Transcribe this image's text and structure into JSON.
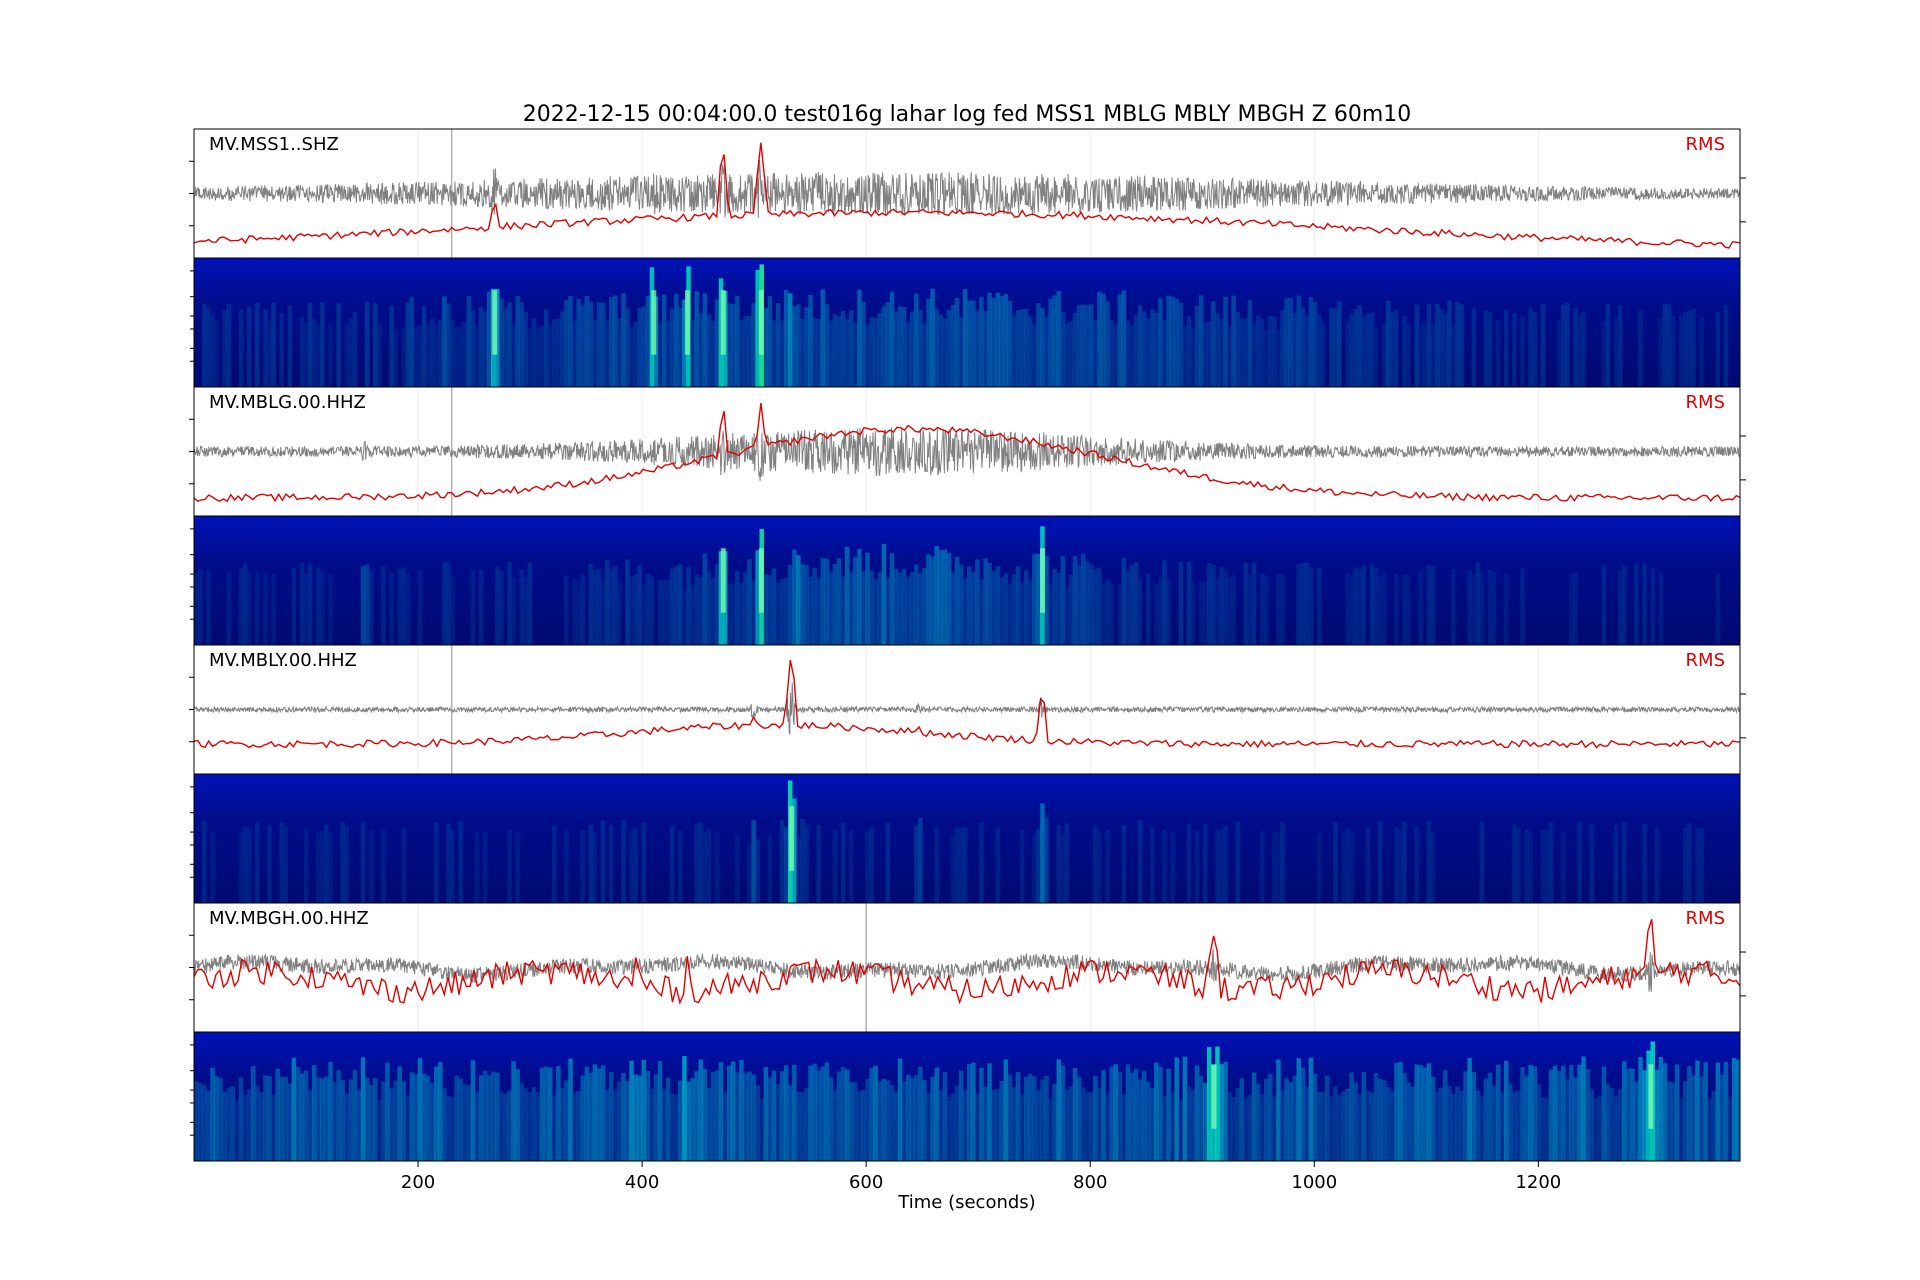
{
  "title": "2022-12-15 00:04:00.0       test016g lahar log fed  MSS1 MBLG MBLY MBGH  Z  60m10",
  "chart_data": {
    "type": "line",
    "title": "2022-12-15 00:04:00.0       test016g lahar log fed  MSS1 MBLG MBLY MBGH  Z  60m10",
    "xlabel": "Time (seconds)",
    "xlim": [
      0,
      1380
    ],
    "xticks": [
      200,
      400,
      600,
      800,
      1000,
      1200
    ],
    "grid": true,
    "legend_label": "RMS",
    "colors": {
      "waveform": "#808080",
      "rms": "#e00000",
      "spectrogram_low": "#00087a",
      "spectrogram_high": "#ffee00"
    },
    "stations": [
      {
        "label": "MV.MSS1..SHZ",
        "marker": 230,
        "env_base": 0.06,
        "env_peak": 0.34,
        "env_center": 620,
        "env_width": 330,
        "spikes": [
          [
            222,
            0.15
          ],
          [
            268,
            0.45
          ],
          [
            410,
            0.4
          ],
          [
            440,
            0.45
          ],
          [
            472,
            0.55
          ],
          [
            506,
            0.62
          ],
          [
            533,
            0.3
          ],
          [
            757,
            0.2
          ]
        ],
        "rms_base": 0.03,
        "rms_peak": 0.32,
        "rms_center": 640,
        "rms_width": 380,
        "rms_spikes": [
          [
            222,
            0.15
          ],
          [
            268,
            0.42
          ],
          [
            410,
            0.28
          ],
          [
            440,
            0.3
          ],
          [
            472,
            0.85
          ],
          [
            506,
            0.92
          ],
          [
            757,
            0.3
          ],
          [
            872,
            0.25
          ]
        ]
      },
      {
        "label": "MV.MBLG.00.HHZ",
        "marker": 230,
        "env_base": 0.08,
        "env_peak": 0.38,
        "env_center": 620,
        "env_width": 160,
        "spikes": [
          [
            152,
            0.18
          ],
          [
            472,
            0.52
          ],
          [
            506,
            0.55
          ],
          [
            540,
            0.3
          ],
          [
            757,
            0.4
          ]
        ],
        "rms_base": 0.12,
        "rms_peak": 0.58,
        "rms_center": 640,
        "rms_width": 170,
        "rms_spikes": [
          [
            472,
            0.86
          ],
          [
            506,
            0.92
          ],
          [
            757,
            0.4
          ]
        ]
      },
      {
        "label": "MV.MBLY.00.HHZ",
        "marker": 230,
        "env_base": 0.04,
        "env_peak": 0.04,
        "env_center": 600,
        "env_width": 200,
        "spikes": [
          [
            353,
            0.06
          ],
          [
            500,
            0.2
          ],
          [
            533,
            0.48
          ],
          [
            647,
            0.1
          ],
          [
            757,
            0.2
          ]
        ],
        "rms_base": 0.22,
        "rms_peak": 0.16,
        "rms_center": 520,
        "rms_width": 130,
        "rms_spikes": [
          [
            500,
            0.46
          ],
          [
            533,
            0.94
          ],
          [
            647,
            0.38
          ],
          [
            757,
            0.62
          ]
        ]
      },
      {
        "label": "MV.MBGH.00.HHZ",
        "marker": 600,
        "env_base": 0.12,
        "env_peak": 0.12,
        "env_center": 600,
        "env_width": 200,
        "spikes": [
          [
            910,
            0.4
          ],
          [
            1300,
            0.35
          ]
        ],
        "rms_base": 0.4,
        "rms_peak": 0.0,
        "rms_center": 600,
        "rms_width": 200,
        "rms_spikes": [
          [
            910,
            0.92
          ],
          [
            1300,
            0.8
          ],
          [
            440,
            0.62
          ],
          [
            395,
            0.6
          ]
        ]
      }
    ]
  }
}
